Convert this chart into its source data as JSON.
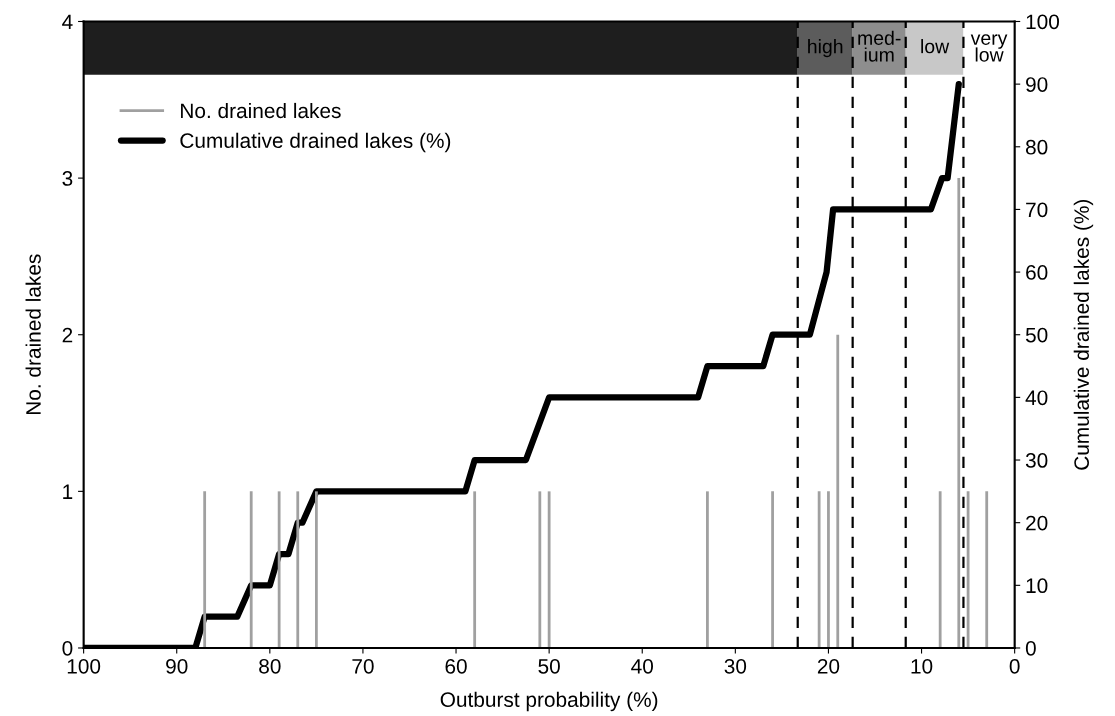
{
  "chart_data": {
    "type": "bar",
    "xlabel": "Outburst probability (%)",
    "ylabel": "No. drained lakes",
    "y2label": "Cumulative drained lakes (%)",
    "xlim": [
      100,
      0
    ],
    "xticks": [
      100,
      90,
      80,
      70,
      60,
      50,
      40,
      30,
      20,
      10,
      0
    ],
    "ylim": [
      0,
      4
    ],
    "yticks": [
      0,
      1,
      2,
      3,
      4
    ],
    "y2lim": [
      0,
      100
    ],
    "y2ticks": [
      0,
      10,
      20,
      30,
      40,
      50,
      60,
      70,
      80,
      90,
      100
    ],
    "grid": false,
    "legend": "top left",
    "series": [
      {
        "name": "No. drained lakes",
        "color": "#a0a0a0",
        "x": [
          87,
          82,
          79,
          77,
          75,
          58,
          51,
          50,
          33,
          26,
          21,
          20,
          19,
          8,
          6,
          5,
          3
        ],
        "values": [
          1,
          1,
          1,
          1,
          1,
          1,
          1,
          1,
          1,
          1,
          1,
          1,
          2,
          1,
          3,
          1,
          1
        ]
      },
      {
        "name": "Cumulative drained lakes (%)",
        "type": "line",
        "axis": "y2",
        "color": "#000000",
        "x": [
          100,
          88,
          87,
          83.5,
          82,
          80,
          79,
          78,
          77,
          76.5,
          75,
          59,
          58,
          52.5,
          50,
          34,
          33,
          27,
          26,
          22,
          20.2,
          19.5,
          9,
          7.8,
          7.2,
          6
        ],
        "values": [
          0,
          0,
          5,
          5,
          10,
          10,
          15,
          15,
          20,
          20,
          25,
          25,
          30,
          30,
          40,
          40,
          45,
          45,
          50,
          50,
          60,
          70,
          70,
          75,
          75,
          90
        ]
      }
    ],
    "bands": [
      {
        "axis": "x",
        "from": 100,
        "to": 23.3,
        "label": null,
        "color": "#1e1e1e"
      },
      {
        "axis": "x",
        "from": 23.3,
        "to": 17.4,
        "label": "high",
        "color": "#5c5c5c"
      },
      {
        "axis": "x",
        "from": 17.4,
        "to": 11.7,
        "label": "med-\nium",
        "color": "#8e8e8e"
      },
      {
        "axis": "x",
        "from": 11.7,
        "to": 5.5,
        "label": "low",
        "color": "#c8c8c8"
      },
      {
        "axis": "x",
        "from": 5.5,
        "to": 0,
        "label": "very\nlow",
        "color": "#ffffff"
      }
    ],
    "ref_lines": [
      {
        "axis": "x",
        "value": 23.3,
        "label": null,
        "line_style": "dashed",
        "color": "#000000"
      },
      {
        "axis": "x",
        "value": 17.4,
        "label": null,
        "line_style": "dashed",
        "color": "#000000"
      },
      {
        "axis": "x",
        "value": 11.7,
        "label": null,
        "line_style": "dashed",
        "color": "#000000"
      },
      {
        "axis": "x",
        "value": 5.5,
        "label": null,
        "line_style": "dashed",
        "color": "#000000"
      }
    ]
  }
}
